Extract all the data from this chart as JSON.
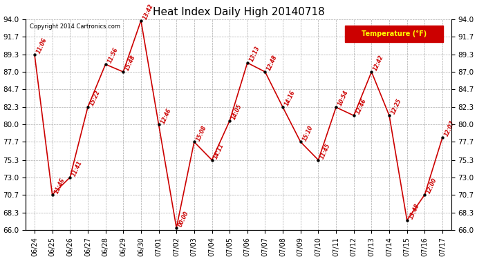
{
  "title": "Heat Index Daily High 20140718",
  "copyright": "Copyright 2014 Cartronics.com",
  "legend_label": "Temperature (°F)",
  "dates": [
    "06/24",
    "06/25",
    "06/26",
    "06/27",
    "06/28",
    "06/29",
    "06/30",
    "07/01",
    "07/02",
    "07/03",
    "07/04",
    "07/05",
    "07/06",
    "07/07",
    "07/08",
    "07/09",
    "07/10",
    "07/11",
    "07/12",
    "07/13",
    "07/14",
    "07/15",
    "07/16",
    "07/17"
  ],
  "values": [
    89.3,
    70.7,
    73.0,
    82.3,
    88.0,
    87.0,
    93.8,
    80.0,
    66.3,
    77.7,
    75.3,
    80.5,
    88.2,
    87.0,
    82.3,
    77.7,
    75.3,
    82.3,
    81.2,
    87.0,
    81.2,
    67.3,
    70.7,
    78.3
  ],
  "times": [
    "11:06",
    "11:46",
    "11:41",
    "15:22",
    "11:56",
    "15:48",
    "13:42",
    "12:46",
    "00:00",
    "15:08",
    "14:11",
    "14:05",
    "13:13",
    "12:48",
    "14:16",
    "15:10",
    "11:45",
    "10:54",
    "12:46",
    "12:42",
    "12:25",
    "13:48",
    "12:00",
    "12:07"
  ],
  "ylim": [
    66.0,
    94.0
  ],
  "yticks": [
    66.0,
    68.3,
    70.7,
    73.0,
    75.3,
    77.7,
    80.0,
    82.3,
    84.7,
    87.0,
    89.3,
    91.7,
    94.0
  ],
  "line_color": "#cc0000",
  "marker_color": "#000000",
  "bg_color": "#ffffff",
  "grid_color": "#aaaaaa",
  "title_color": "#000000",
  "label_color": "#cc0000",
  "copyright_color": "#000000",
  "legend_bg": "#cc0000",
  "legend_fg": "#ffff00",
  "fig_width": 6.9,
  "fig_height": 3.75,
  "dpi": 100
}
